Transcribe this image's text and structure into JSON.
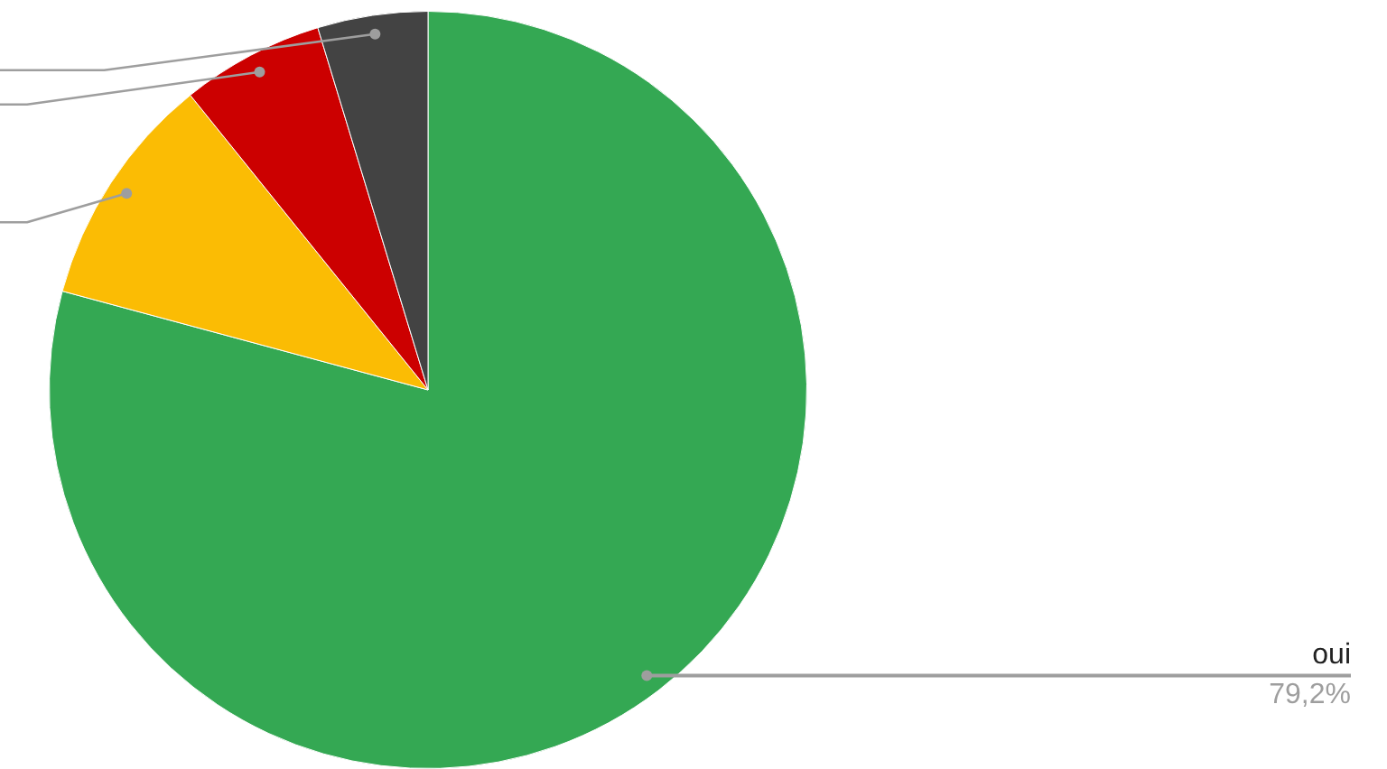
{
  "chart_data": {
    "type": "pie",
    "categories": [
      "oui",
      null,
      null,
      null
    ],
    "values": [
      79.2,
      10.0,
      6.1,
      4.7
    ],
    "colors": [
      "#34a853",
      "#fbbc04",
      "#cc0000",
      "#434343"
    ],
    "value_labels": [
      "79,2%",
      null,
      null,
      null
    ],
    "legend": false
  }
}
